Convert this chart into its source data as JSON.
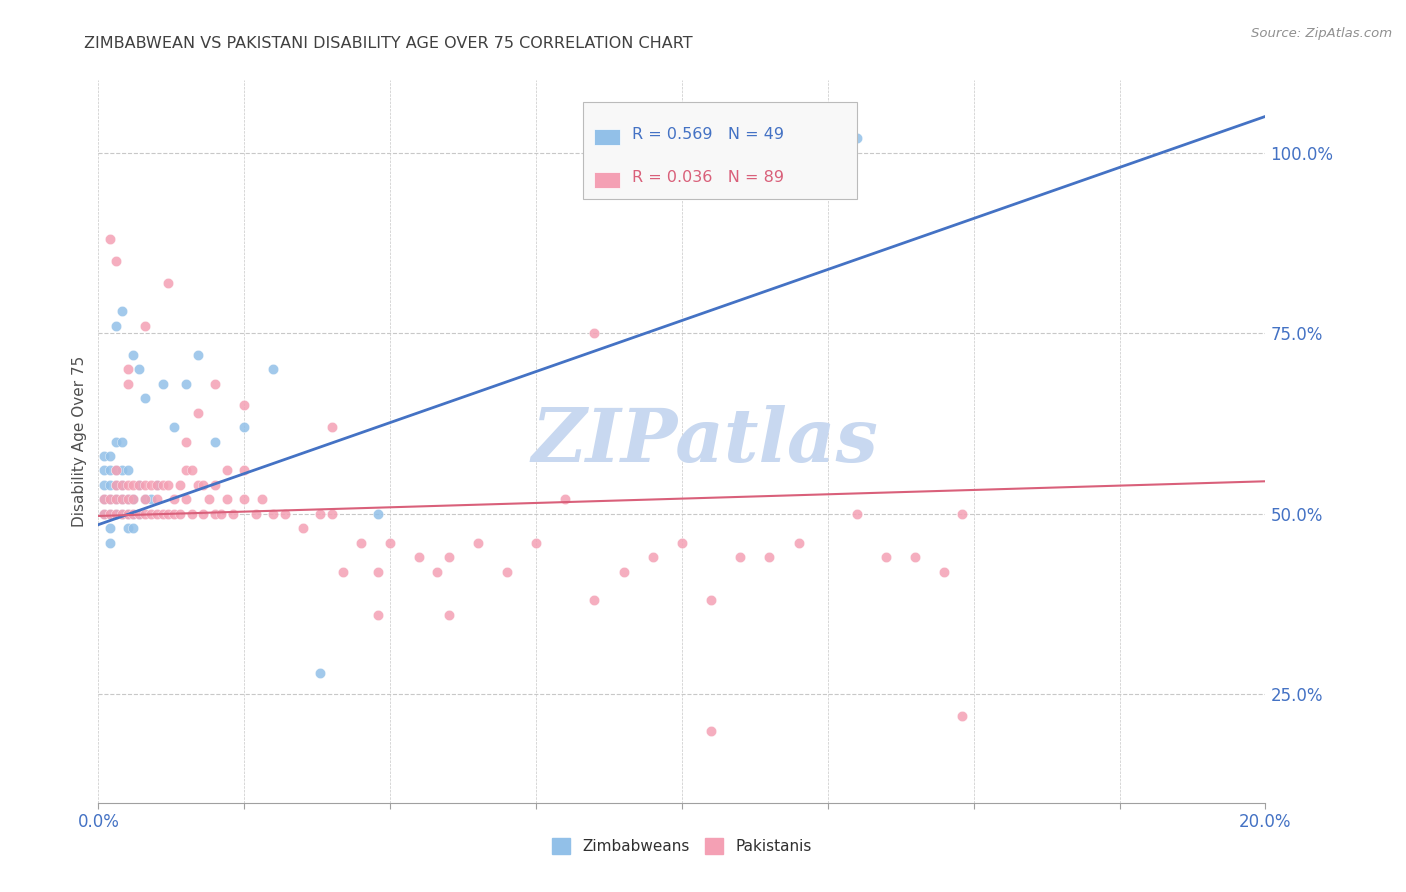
{
  "title": "ZIMBABWEAN VS PAKISTANI DISABILITY AGE OVER 75 CORRELATION CHART",
  "source": "Source: ZipAtlas.com",
  "ylabel": "Disability Age Over 75",
  "xlim": [
    0.0,
    0.2
  ],
  "ylim": [
    0.1,
    1.1
  ],
  "yticks": [
    0.25,
    0.5,
    0.75,
    1.0
  ],
  "ytick_labels": [
    "25.0%",
    "50.0%",
    "75.0%",
    "100.0%"
  ],
  "xticks": [
    0.0,
    0.025,
    0.05,
    0.075,
    0.1,
    0.125,
    0.15,
    0.175,
    0.2
  ],
  "xtick_labels": [
    "0.0%",
    "",
    "",
    "",
    "",
    "",
    "",
    "",
    "20.0%"
  ],
  "zimbabwe_color": "#92C0E8",
  "pakistan_color": "#F4A0B4",
  "zimbabwe_line_color": "#4472C4",
  "pakistan_line_color": "#D9607A",
  "background_color": "#ffffff",
  "grid_color": "#C8C8C8",
  "watermark": "ZIPatlas",
  "watermark_color": "#C8D8F0",
  "legend_r_zim": "R = 0.569",
  "legend_n_zim": "N = 49",
  "legend_r_pak": "R = 0.036",
  "legend_n_pak": "N = 89",
  "legend_label_zim": "Zimbabweans",
  "legend_label_pak": "Pakistanis",
  "title_color": "#404040",
  "tick_label_color": "#4472C4",
  "zim_line_x0": 0.0,
  "zim_line_y0": 0.485,
  "zim_line_x1": 0.2,
  "zim_line_y1": 1.05,
  "pak_line_x0": 0.0,
  "pak_line_y0": 0.497,
  "pak_line_x1": 0.2,
  "pak_line_y1": 0.545
}
